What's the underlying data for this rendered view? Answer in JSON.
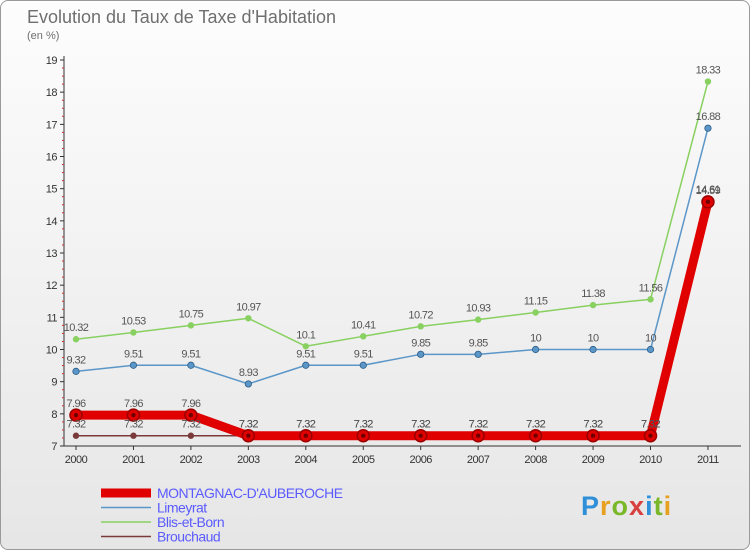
{
  "header": {
    "title": "Evolution du Taux de Taxe d'Habitation",
    "unit": "(en %)"
  },
  "logo": {
    "text": "Proxiti",
    "colors": [
      "#2f8fd8",
      "#e8a020",
      "#7ab82a",
      "#d84040",
      "#2f8fd8",
      "#7ab82a",
      "#e8a020"
    ]
  },
  "chart_data": {
    "type": "line",
    "title": "Evolution du Taux de Taxe d'Habitation",
    "ylabel": "(en %)",
    "xlabel": "",
    "ylim": [
      7,
      19
    ],
    "yticks": [
      7,
      8,
      9,
      10,
      11,
      12,
      13,
      14,
      15,
      16,
      17,
      18,
      19
    ],
    "categories": [
      "2000",
      "2001",
      "2002",
      "2003",
      "2004",
      "2005",
      "2006",
      "2007",
      "2008",
      "2009",
      "2010",
      "2011"
    ],
    "series": [
      {
        "name": "Brouchaud",
        "color": "#7a3a3a",
        "values": [
          7.32,
          7.32,
          7.32,
          7.32,
          7.32,
          7.32,
          7.32,
          7.32,
          7.32,
          7.32,
          7.32,
          14.61
        ],
        "labels": [
          "7.32",
          "7.32",
          "7.32",
          "7.32",
          "7.32",
          "7.32",
          "7.32",
          "7.32",
          "7.32",
          "7.32",
          "7.32",
          "14.61"
        ]
      },
      {
        "name": "Limeyrat",
        "color": "#5b96c8",
        "values": [
          9.32,
          9.51,
          9.51,
          8.93,
          9.51,
          9.51,
          9.85,
          9.85,
          10,
          10,
          10,
          16.88
        ],
        "labels": [
          "9.32",
          "9.51",
          "9.51",
          "8.93",
          "9.51",
          "9.51",
          "9.85",
          "9.85",
          "10",
          "10",
          "10",
          "16.88"
        ]
      },
      {
        "name": "Blis-et-Born",
        "color": "#88d060",
        "values": [
          10.32,
          10.53,
          10.75,
          10.97,
          10.1,
          10.41,
          10.72,
          10.93,
          11.15,
          11.38,
          11.56,
          18.33
        ],
        "labels": [
          "10.32",
          "10.53",
          "10.75",
          "10.97",
          "10.1",
          "10.41",
          "10.72",
          "10.93",
          "11.15",
          "11.38",
          "11.56",
          "18.33"
        ]
      },
      {
        "name": "MONTAGNAC-D'AUBEROCHE",
        "color": "#e00000",
        "values": [
          7.96,
          7.96,
          7.96,
          7.32,
          7.32,
          7.32,
          7.32,
          7.32,
          7.32,
          7.32,
          7.32,
          14.59
        ],
        "labels": [
          "7.96",
          "7.96",
          "7.96",
          "7.32",
          "7.32",
          "7.32",
          "7.32",
          "7.32",
          "7.32",
          "7.32",
          "7.32",
          "14.59"
        ]
      }
    ],
    "legend": {
      "position": "bottom-left",
      "items": [
        {
          "name": "MONTAGNAC-D'AUBEROCHE",
          "color": "#e00000",
          "text_color": "#5a5aff"
        },
        {
          "name": "Limeyrat",
          "color": "#5b96c8",
          "text_color": "#5a5aff"
        },
        {
          "name": "Blis-et-Born",
          "color": "#88d060",
          "text_color": "#5a5aff"
        },
        {
          "name": "Brouchaud",
          "color": "#7a3a3a",
          "text_color": "#5a5aff"
        }
      ]
    }
  }
}
